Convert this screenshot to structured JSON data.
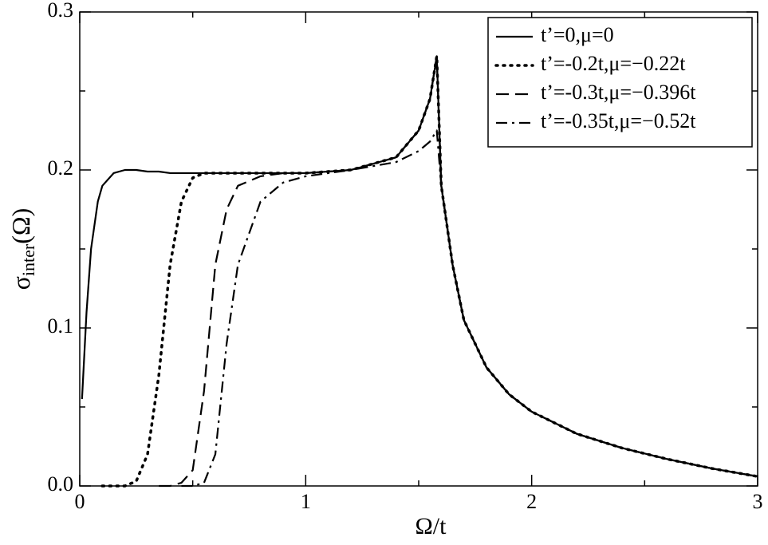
{
  "chart_data": {
    "type": "line",
    "xlabel": "Ω/t",
    "ylabel": {
      "base": "σ",
      "sub": "inter",
      "tail": "(Ω)"
    },
    "x": [
      0.01,
      0.03,
      0.05,
      0.08,
      0.1,
      0.15,
      0.2,
      0.25,
      0.3,
      0.35,
      0.4,
      0.45,
      0.5,
      0.55,
      0.6,
      0.65,
      0.7,
      0.8,
      0.9,
      1.0,
      1.2,
      1.4,
      1.5,
      1.55,
      1.58,
      1.6,
      1.65,
      1.7,
      1.8,
      1.9,
      2.0,
      2.2,
      2.4,
      2.6,
      2.8,
      3.0
    ],
    "series": [
      {
        "name": "t’=0,μ=0",
        "color": "#000000",
        "dash": "solid",
        "values": [
          0.055,
          0.11,
          0.15,
          0.18,
          0.19,
          0.198,
          0.2,
          0.2,
          0.199,
          0.199,
          0.198,
          0.198,
          0.198,
          0.198,
          0.198,
          0.198,
          0.198,
          0.198,
          0.198,
          0.198,
          0.2,
          0.208,
          0.225,
          0.245,
          0.272,
          0.19,
          0.14,
          0.105,
          0.075,
          0.058,
          0.047,
          0.033,
          0.024,
          0.017,
          0.011,
          0.006
        ]
      },
      {
        "name": "t’=-0.2t,μ=−0.22t",
        "color": "#000000",
        "dash": "dotted",
        "values": [
          null,
          null,
          null,
          null,
          0.0,
          0.0,
          0.0,
          0.003,
          0.02,
          0.07,
          0.14,
          0.18,
          0.195,
          0.198,
          0.198,
          0.198,
          0.198,
          0.198,
          0.198,
          0.198,
          0.2,
          0.208,
          0.225,
          0.245,
          0.272,
          0.19,
          0.14,
          0.105,
          0.075,
          0.058,
          0.047,
          0.033,
          0.024,
          0.017,
          0.011,
          0.006
        ]
      },
      {
        "name": "t’=-0.3t,μ=−0.396t",
        "color": "#000000",
        "dash": "dashed",
        "values": [
          null,
          null,
          null,
          null,
          null,
          null,
          null,
          null,
          null,
          0.0,
          0.0,
          0.002,
          0.01,
          0.06,
          0.14,
          0.175,
          0.19,
          0.196,
          0.198,
          0.198,
          0.2,
          0.208,
          0.225,
          0.245,
          0.272,
          0.19,
          0.14,
          0.105,
          0.075,
          0.058,
          0.047,
          0.033,
          0.024,
          0.017,
          0.011,
          0.006
        ]
      },
      {
        "name": "t’=-0.35t,μ=−0.52t",
        "color": "#000000",
        "dash": "dashdot",
        "values": [
          null,
          null,
          null,
          null,
          null,
          null,
          null,
          null,
          null,
          null,
          null,
          0.0,
          0.0,
          0.002,
          0.02,
          0.09,
          0.14,
          0.18,
          0.192,
          0.196,
          0.2,
          0.205,
          0.212,
          0.218,
          0.225,
          0.19,
          0.14,
          0.105,
          0.075,
          0.058,
          0.047,
          0.033,
          0.024,
          0.017,
          0.011,
          0.006
        ]
      }
    ],
    "xlim": [
      0,
      3
    ],
    "ylim": [
      0,
      0.3
    ],
    "xticks": [
      0,
      1,
      2,
      3
    ],
    "xminorticks": [
      0.5,
      1.5,
      2.5
    ],
    "yticks": [
      {
        "value": 0,
        "label": "0.0"
      },
      0.1,
      0.2,
      0.3
    ],
    "yminorticks": [
      0.05,
      0.15,
      0.25
    ],
    "legend": "upper right"
  }
}
